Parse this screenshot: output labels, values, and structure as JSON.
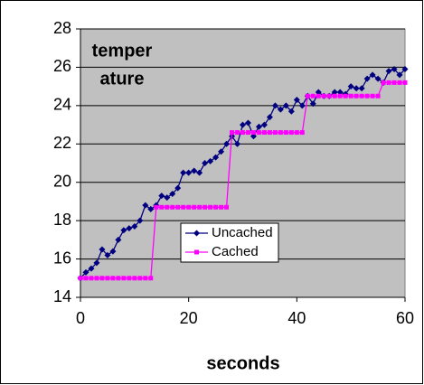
{
  "chart_data": {
    "type": "line",
    "title": [
      "temper",
      "ature"
    ],
    "x_label": "seconds",
    "x": [
      0,
      1,
      2,
      3,
      4,
      5,
      6,
      7,
      8,
      9,
      10,
      11,
      12,
      13,
      14,
      15,
      16,
      17,
      18,
      19,
      20,
      21,
      22,
      23,
      24,
      25,
      26,
      27,
      28,
      29,
      30,
      31,
      32,
      33,
      34,
      35,
      36,
      37,
      38,
      39,
      40,
      41,
      42,
      43,
      44,
      45,
      46,
      47,
      48,
      49,
      50,
      51,
      52,
      53,
      54,
      55,
      56,
      57,
      58,
      59,
      60
    ],
    "series": [
      {
        "name": "Uncached",
        "color": "#000080",
        "marker": "diamond",
        "values": [
          15.0,
          15.3,
          15.5,
          15.8,
          16.5,
          16.2,
          16.4,
          17.0,
          17.5,
          17.6,
          17.7,
          18.0,
          18.8,
          18.6,
          18.8,
          19.3,
          19.2,
          19.4,
          19.7,
          20.5,
          20.5,
          20.6,
          20.5,
          21.0,
          21.1,
          21.3,
          21.6,
          22.0,
          22.4,
          22.0,
          23.0,
          23.1,
          22.4,
          22.9,
          23.0,
          23.4,
          24.0,
          23.8,
          24.0,
          23.7,
          24.3,
          24.0,
          24.5,
          24.1,
          24.7,
          24.5,
          24.5,
          24.7,
          24.7,
          24.6,
          25.0,
          24.9,
          24.9,
          25.4,
          25.6,
          25.4,
          25.2,
          25.8,
          25.9,
          25.6,
          25.9
        ]
      },
      {
        "name": "Cached",
        "color": "#ff00ff",
        "marker": "square",
        "values": [
          15.0,
          15.0,
          15.0,
          15.0,
          15.0,
          15.0,
          15.0,
          15.0,
          15.0,
          15.0,
          15.0,
          15.0,
          15.0,
          15.0,
          18.7,
          18.7,
          18.7,
          18.7,
          18.7,
          18.7,
          18.7,
          18.7,
          18.7,
          18.7,
          18.7,
          18.7,
          18.7,
          18.7,
          22.6,
          22.6,
          22.6,
          22.6,
          22.6,
          22.6,
          22.6,
          22.6,
          22.6,
          22.6,
          22.6,
          22.6,
          22.6,
          22.6,
          24.5,
          24.5,
          24.5,
          24.5,
          24.5,
          24.5,
          24.5,
          24.5,
          24.5,
          24.5,
          24.5,
          24.5,
          24.5,
          24.5,
          25.2,
          25.2,
          25.2,
          25.2,
          25.2
        ]
      }
    ],
    "xlim": [
      0,
      60
    ],
    "xticks": [
      0,
      20,
      40,
      60
    ],
    "ylim": [
      14,
      28
    ],
    "yticks": [
      14,
      16,
      18,
      20,
      22,
      24,
      26,
      28
    ],
    "grid": true,
    "plot_background": "#c0c0c0"
  }
}
